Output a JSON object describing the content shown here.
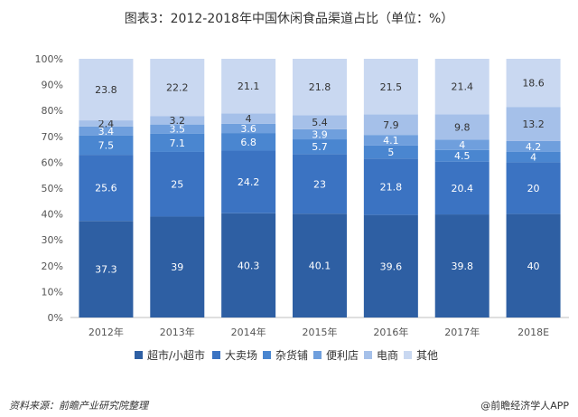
{
  "title": "图表3：2012-2018年中国休闲食品渠道占比（单位：%）",
  "source": "资料来源：前瞻产业研究院整理",
  "brand": "@前瞻经济学人APP",
  "chart_data": {
    "type": "bar",
    "stacked": true,
    "percent_stacked": true,
    "categories": [
      "2012年",
      "2013年",
      "2014年",
      "2015年",
      "2016年",
      "2017年",
      "2018E"
    ],
    "y_ticks": [
      "0%",
      "10%",
      "20%",
      "30%",
      "40%",
      "50%",
      "60%",
      "70%",
      "80%",
      "90%",
      "100%"
    ],
    "ylim": [
      0,
      100
    ],
    "grid": false,
    "legend_position": "bottom",
    "series": [
      {
        "name": "超市/小超市",
        "color": "#2e5fa3",
        "values": [
          37.3,
          39,
          40.3,
          40.1,
          39.6,
          39.8,
          40
        ]
      },
      {
        "name": "大卖场",
        "color": "#3b73c2",
        "values": [
          25.6,
          25,
          24.2,
          23,
          21.8,
          20.4,
          20
        ]
      },
      {
        "name": "杂货铺",
        "color": "#4a86d0",
        "values": [
          7.5,
          7.1,
          6.8,
          5.7,
          5,
          4.5,
          4
        ]
      },
      {
        "name": "便利店",
        "color": "#6f9fdd",
        "values": [
          3.4,
          3.5,
          3.6,
          3.9,
          4.1,
          4,
          4.2
        ]
      },
      {
        "name": "电商",
        "color": "#a5c0e9",
        "values": [
          2.4,
          3.2,
          4,
          5.4,
          7.9,
          9.8,
          13.2
        ]
      },
      {
        "name": "其他",
        "color": "#c9d8f1",
        "values": [
          23.8,
          22.2,
          21.1,
          21.8,
          21.5,
          21.4,
          18.6
        ]
      }
    ]
  }
}
